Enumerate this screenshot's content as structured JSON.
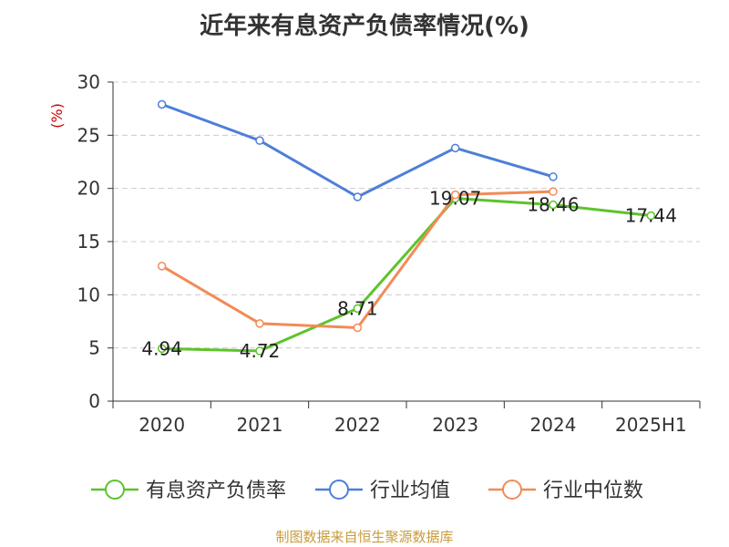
{
  "chart_data": {
    "type": "line",
    "title": "近年来有息资产负债率情况(%)",
    "ylabel": "(%)",
    "xlabel": "",
    "ylim": [
      0,
      30
    ],
    "yticks": [
      0,
      5,
      10,
      15,
      20,
      25,
      30
    ],
    "categories": [
      "2020",
      "2021",
      "2022",
      "2023",
      "2024",
      "2025H1"
    ],
    "grid": "horizontal dashed",
    "legend_position": "bottom",
    "series": [
      {
        "name": "有息资产负债率",
        "color": "#5cc42b",
        "values": [
          4.94,
          4.72,
          8.71,
          19.07,
          18.46,
          17.44
        ],
        "labels": [
          "4.94",
          "4.72",
          "8.71",
          "19.07",
          "18.46",
          "17.44"
        ]
      },
      {
        "name": "行业均值",
        "color": "#4e7fd8",
        "values": [
          27.9,
          24.5,
          19.2,
          23.8,
          21.1,
          null
        ]
      },
      {
        "name": "行业中位数",
        "color": "#f28b57",
        "values": [
          12.7,
          7.3,
          6.9,
          19.4,
          19.7,
          null
        ]
      }
    ]
  },
  "footer": "制图数据来自恒生聚源数据库"
}
